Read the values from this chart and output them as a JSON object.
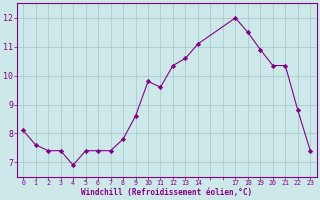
{
  "x": [
    0,
    1,
    2,
    3,
    4,
    5,
    6,
    7,
    8,
    9,
    10,
    11,
    12,
    13,
    14,
    17,
    18,
    19,
    20,
    21,
    22,
    23
  ],
  "y": [
    8.1,
    7.6,
    7.4,
    7.4,
    6.9,
    7.4,
    7.4,
    7.4,
    7.8,
    8.6,
    9.8,
    9.6,
    10.35,
    10.6,
    11.1,
    12.0,
    11.5,
    10.9,
    10.35,
    10.35,
    8.8,
    7.4
  ],
  "line_color": "#880088",
  "marker": "D",
  "marker_size": 2.2,
  "bg_color": "#cce8e8",
  "grid_color": "#aacccc",
  "xlabel": "Windchill (Refroidissement éolien,°C)",
  "xlabel_color": "#880088",
  "tick_color": "#880088",
  "ylim": [
    6.5,
    12.5
  ],
  "yticks": [
    7,
    8,
    9,
    10,
    11,
    12
  ],
  "xtick_labels": [
    "0",
    "1",
    "2",
    "3",
    "4",
    "5",
    "6",
    "7",
    "8",
    "9",
    "10",
    "11",
    "12",
    "13",
    "14",
    "",
    "",
    "17",
    "18",
    "19",
    "20",
    "21",
    "22",
    "23"
  ],
  "xlim": [
    -0.5,
    23.5
  ],
  "spine_color": "#880088"
}
